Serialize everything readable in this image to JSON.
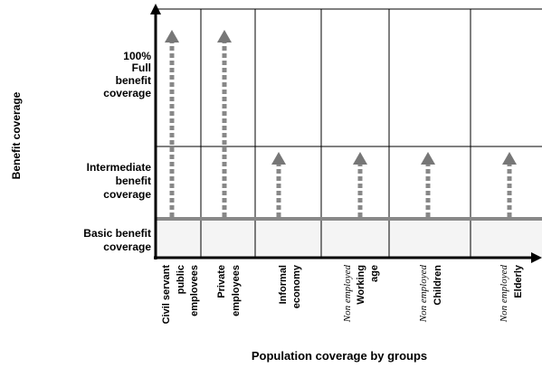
{
  "y_axis_title": "Benefit coverage",
  "x_axis_title": "Population coverage by groups",
  "rows": [
    [
      "100%",
      "Full",
      "benefit",
      "coverage"
    ],
    [
      "Intermediate",
      "benefit",
      "coverage"
    ],
    [
      "Basic benefit",
      "coverage"
    ]
  ],
  "columns": [
    [
      "Civil servant",
      "public",
      "emplovees"
    ],
    [
      "Private",
      "employees"
    ],
    [
      "Informal",
      "economy"
    ],
    [
      "Non employed",
      "Working",
      "age"
    ],
    [
      "Non employed",
      "Children"
    ],
    [
      "Non employed",
      "Elderly"
    ]
  ]
}
